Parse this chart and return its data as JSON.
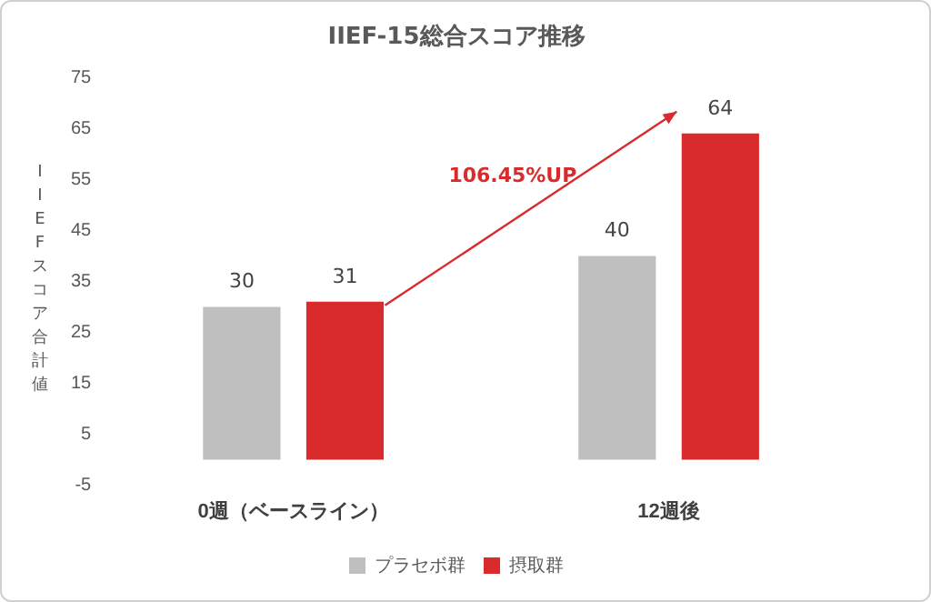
{
  "chart_data": {
    "type": "bar",
    "title": "IIEF-15総合スコア推移",
    "ylabel": "IIEFスコア合計値",
    "categories": [
      "0週（ベースライン）",
      "12週後"
    ],
    "series": [
      {
        "name": "プラセボ群",
        "color": "#bfbfbf",
        "values": [
          30,
          40
        ]
      },
      {
        "name": "摂取群",
        "color": "#d92b2b",
        "values": [
          31,
          64
        ]
      }
    ],
    "ylim": [
      -5,
      75
    ],
    "yticks": [
      -5,
      5,
      15,
      25,
      35,
      45,
      55,
      65,
      75
    ],
    "grid": false,
    "legend": "bottom",
    "data_labels": true,
    "annotations": [
      "106.45%UP"
    ]
  }
}
